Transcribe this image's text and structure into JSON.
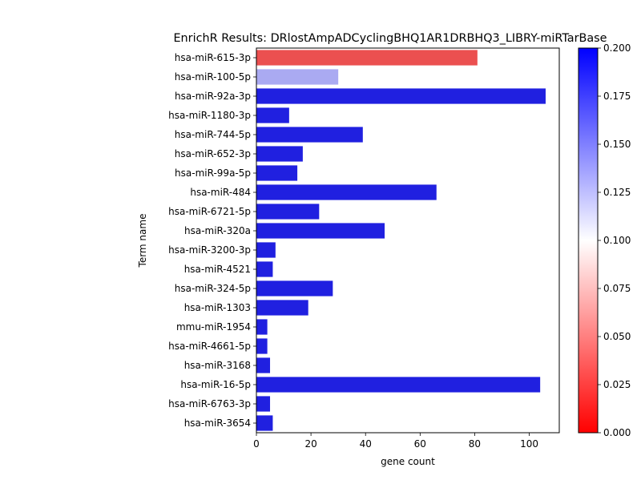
{
  "chart_data": {
    "type": "bar",
    "orientation": "horizontal",
    "title": "EnrichR Results: DRlostAmpADCyclingBHQ1AR1DRBHQ3_LIBRY-miRTarBase",
    "xlabel": "gene count",
    "ylabel": "Term name",
    "xlim": [
      0,
      111
    ],
    "x_ticks": [
      "0",
      "20",
      "40",
      "60",
      "80",
      "100"
    ],
    "grid": false,
    "categories": [
      "hsa-miR-615-3p",
      "hsa-miR-100-5p",
      "hsa-miR-92a-3p",
      "hsa-miR-1180-3p",
      "hsa-miR-744-5p",
      "hsa-miR-652-3p",
      "hsa-miR-99a-5p",
      "hsa-miR-484",
      "hsa-miR-6721-5p",
      "hsa-miR-320a",
      "hsa-miR-3200-3p",
      "hsa-miR-4521",
      "hsa-miR-324-5p",
      "hsa-miR-1303",
      "mmu-miR-1954",
      "hsa-miR-4661-5p",
      "hsa-miR-3168",
      "hsa-miR-16-5p",
      "hsa-miR-6763-3p",
      "hsa-miR-3654"
    ],
    "values": [
      81,
      30,
      106,
      12,
      39,
      17,
      15,
      66,
      23,
      47,
      7,
      6,
      28,
      19,
      4,
      4,
      5,
      104,
      5,
      6
    ],
    "bar_colors": [
      "#eb5050",
      "#aaaaf2",
      "#2020e0",
      "#2020e0",
      "#2020e0",
      "#2020e0",
      "#2020e0",
      "#2020e0",
      "#2020e0",
      "#2020e0",
      "#2020e0",
      "#2020e0",
      "#2020e0",
      "#2020e0",
      "#2020e0",
      "#2020e0",
      "#2020e0",
      "#2020e0",
      "#2020e0",
      "#2020e0"
    ],
    "colorbar": {
      "colormap": "bwr_r",
      "range": [
        0,
        0.2
      ],
      "ticks": [
        "0.000",
        "0.025",
        "0.050",
        "0.075",
        "0.100",
        "0.125",
        "0.150",
        "0.175",
        "0.200"
      ],
      "color_low": "#ff0000",
      "color_mid": "#ffffff",
      "color_high": "#0000ff"
    }
  }
}
